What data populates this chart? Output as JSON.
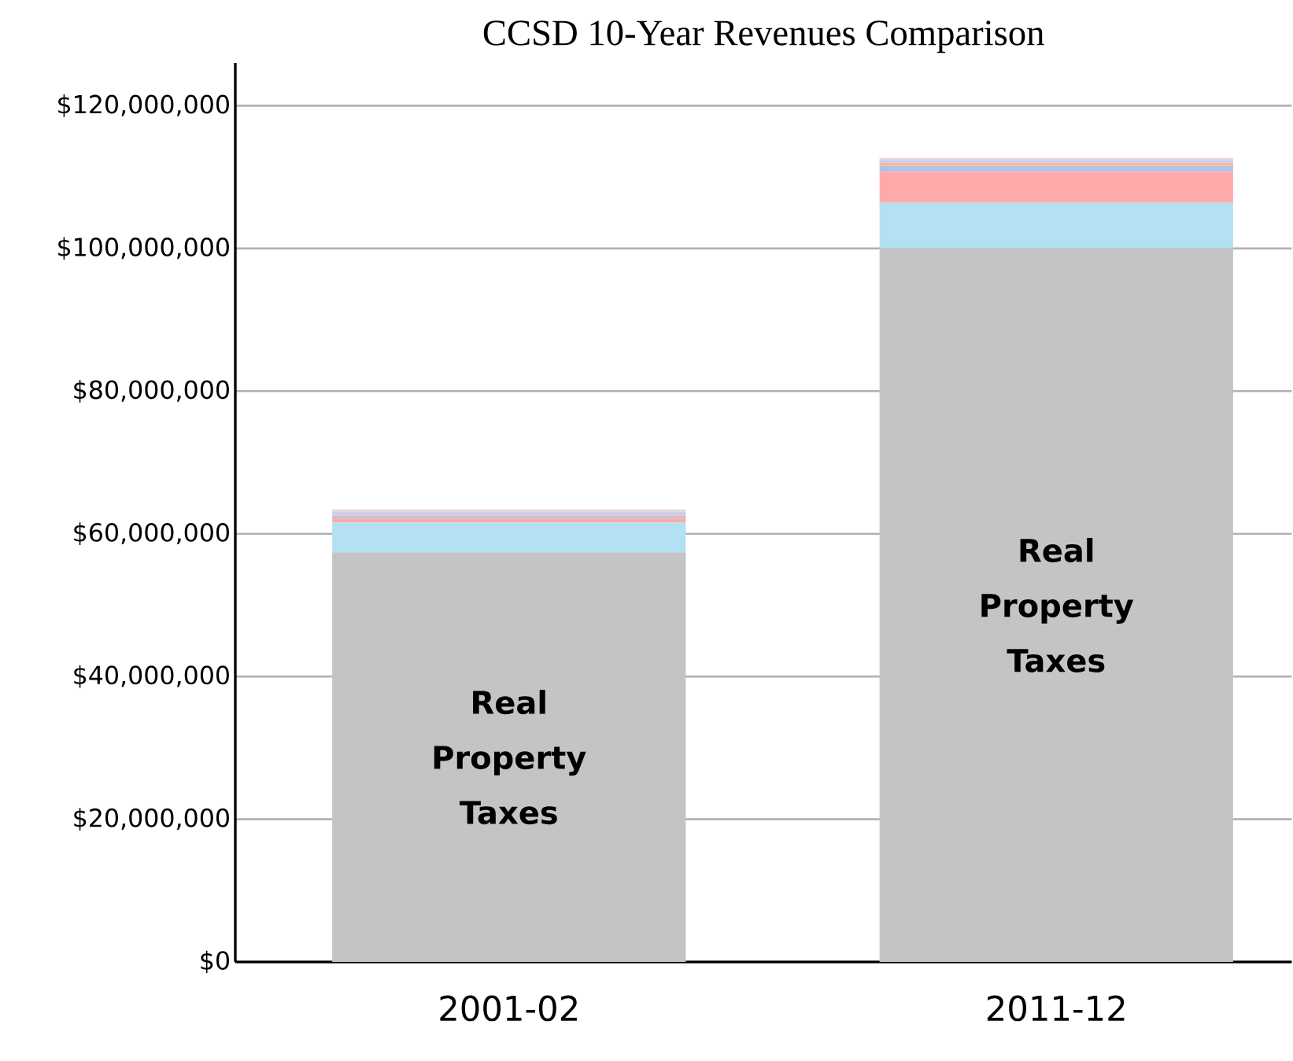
{
  "chart_data": {
    "type": "bar",
    "title": "CCSD 10-Year Revenues Comparison",
    "stacked": true,
    "grid": "y",
    "categories": [
      "2001-02",
      "2011-12"
    ],
    "ylim": [
      0,
      126000000
    ],
    "yticks": [
      {
        "value": 0,
        "label": "$0"
      },
      {
        "value": 20000000,
        "label": "$20,000,000"
      },
      {
        "value": 40000000,
        "label": "$40,000,000"
      },
      {
        "value": 60000000,
        "label": "$60,000,000"
      },
      {
        "value": 80000000,
        "label": "$80,000,000"
      },
      {
        "value": 100000000,
        "label": "$100,000,000"
      },
      {
        "value": 120000000,
        "label": "$120,000,000"
      }
    ],
    "series": [
      {
        "name": "Real Property Taxes",
        "color": "#c4c4c4",
        "values": [
          57400000,
          100000000
        ]
      },
      {
        "color": "#b4e0f4",
        "values": [
          4200000,
          6400000
        ]
      },
      {
        "color": "#ffaaaa",
        "values": [
          500000,
          4300000
        ]
      },
      {
        "color": "#b8c0e0",
        "values": [
          300000,
          900000
        ]
      },
      {
        "color": "#ffb898",
        "values": [
          200000,
          400000
        ]
      },
      {
        "color": "#c8d0f0",
        "values": [
          500000,
          400000
        ]
      },
      {
        "color": "#e8d4d8",
        "values": [
          300000,
          300000
        ]
      }
    ]
  }
}
